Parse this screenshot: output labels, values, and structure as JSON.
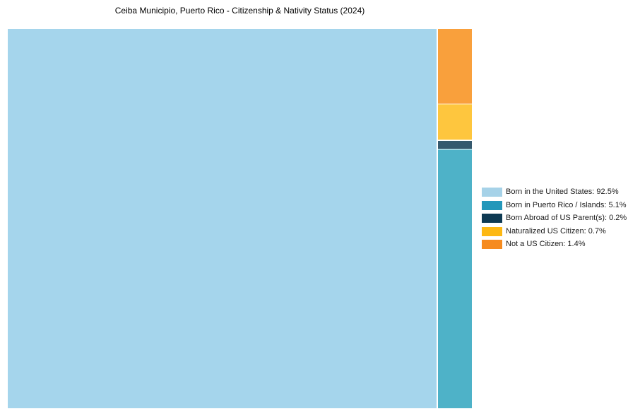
{
  "title": "Ceiba Municipio, Puerto Rico - Citizenship & Nativity Status (2024)",
  "chart_data": {
    "type": "treemap",
    "title": "Ceiba Municipio, Puerto Rico - Citizenship & Nativity Status (2024)",
    "unit": "%",
    "legend_position": "right",
    "background_color": "#ffffff",
    "categories": [
      "Born in the United States",
      "Born in Puerto Rico / Islands",
      "Born Abroad of US Parent(s)",
      "Naturalized US Citizen",
      "Not a US Citizen"
    ],
    "values": [
      92.5,
      5.1,
      0.2,
      0.7,
      1.4
    ],
    "segments": [
      {
        "label": "Born in the United States",
        "value": 92.5,
        "legend_label": "Born in the United States: 92.5%",
        "cell_color": "#a5d5ec",
        "legend_color": "#a6d2e8"
      },
      {
        "label": "Born in Puerto Rico / Islands",
        "value": 5.1,
        "legend_label": "Born in Puerto Rico / Islands: 5.1%",
        "cell_color": "#4eb2c8",
        "legend_color": "#2397ba"
      },
      {
        "label": "Born Abroad of US Parent(s)",
        "value": 0.2,
        "legend_label": "Born Abroad of US Parent(s): 0.2%",
        "cell_color": "#35596e",
        "legend_color": "#0e3a53"
      },
      {
        "label": "Naturalized US Citizen",
        "value": 0.7,
        "legend_label": "Naturalized US Citizen: 0.7%",
        "cell_color": "#fec63e",
        "legend_color": "#fdb813"
      },
      {
        "label": "Not a US Citizen",
        "value": 1.4,
        "legend_label": "Not a US Citizen: 1.4%",
        "cell_color": "#f9a03c",
        "legend_color": "#f68b1f"
      }
    ]
  }
}
